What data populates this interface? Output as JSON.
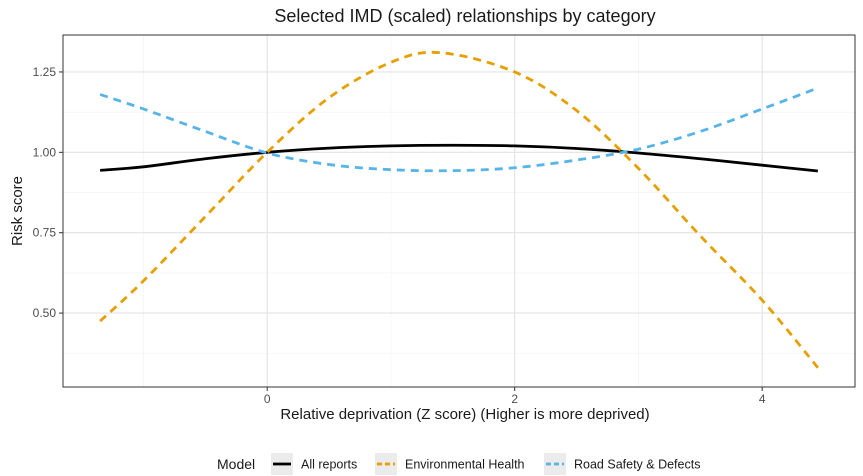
{
  "chart_data": {
    "type": "line",
    "title": "Selected IMD (scaled) relationships by category",
    "xlabel": "Relative deprivation (Z score) (Higher is more deprived)",
    "ylabel": "Risk score",
    "xlim": [
      -1.65,
      4.75
    ],
    "ylim": [
      0.27,
      1.365
    ],
    "x_ticks": [
      0,
      2,
      4
    ],
    "x_tick_labels": [
      "0",
      "2",
      "4"
    ],
    "x_minor_ticks": [
      -1,
      1,
      3
    ],
    "y_ticks": [
      0.5,
      0.75,
      1.0,
      1.25
    ],
    "y_tick_labels": [
      "0.50",
      "0.75",
      "1.00",
      "1.25"
    ],
    "y_minor_ticks": [
      0.375,
      0.625,
      0.875,
      1.125
    ],
    "grid": true,
    "legend_position": "bottom",
    "legend_title": "Model",
    "series": [
      {
        "name": "All reports",
        "color": "#000000",
        "dash": "solid",
        "x": [
          -1.35,
          -1.0,
          -0.5,
          0.0,
          0.5,
          1.0,
          1.5,
          2.0,
          2.5,
          3.0,
          3.5,
          4.0,
          4.45
        ],
        "y": [
          0.944,
          0.955,
          0.98,
          1.0,
          1.013,
          1.02,
          1.022,
          1.02,
          1.012,
          0.998,
          0.98,
          0.96,
          0.942
        ]
      },
      {
        "name": "Environmental Health",
        "color": "#E69F00",
        "dash": "dashed",
        "x": [
          -1.35,
          -1.0,
          -0.5,
          0.0,
          0.5,
          1.0,
          1.4,
          2.0,
          2.5,
          3.0,
          3.5,
          4.0,
          4.45
        ],
        "y": [
          0.475,
          0.6,
          0.8,
          1.0,
          1.17,
          1.28,
          1.31,
          1.25,
          1.13,
          0.95,
          0.74,
          0.54,
          0.33
        ]
      },
      {
        "name": "Road Safety & Defects",
        "color": "#56B4E9",
        "dash": "dashed",
        "x": [
          -1.35,
          -1.0,
          -0.5,
          0.0,
          0.5,
          1.0,
          1.5,
          2.0,
          2.5,
          3.0,
          3.5,
          4.0,
          4.45
        ],
        "y": [
          1.18,
          1.135,
          1.065,
          0.998,
          0.962,
          0.946,
          0.943,
          0.952,
          0.976,
          1.01,
          1.065,
          1.135,
          1.2
        ]
      }
    ]
  }
}
